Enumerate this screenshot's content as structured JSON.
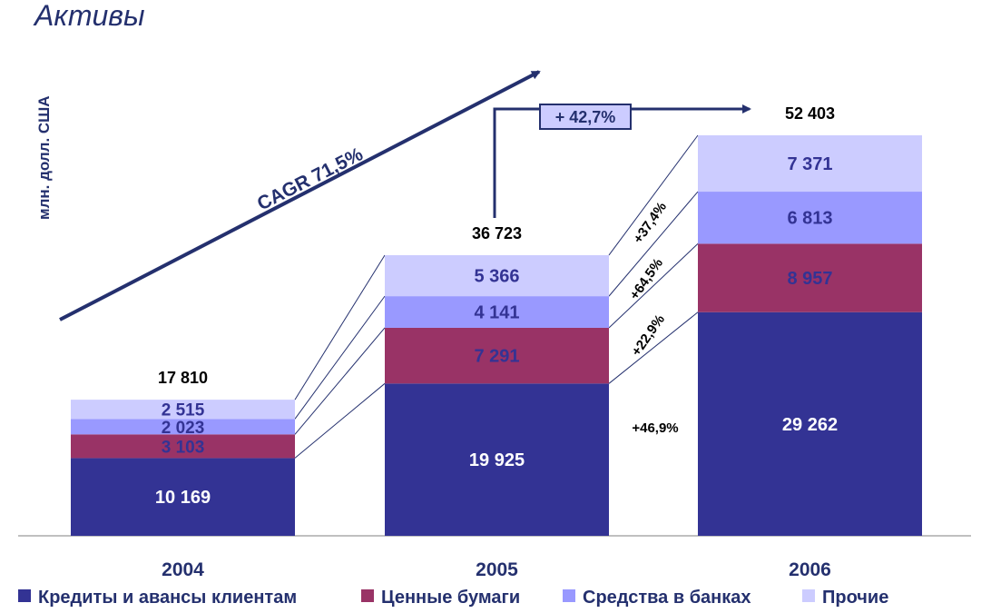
{
  "chart_data": {
    "type": "bar",
    "stacked": true,
    "title": "Активы",
    "ylabel": "млн. долл. США",
    "categories": [
      "2004",
      "2005",
      "2006"
    ],
    "series": [
      {
        "name": "Кредиты и авансы клиентам",
        "values": [
          10169,
          19925,
          29262
        ],
        "labels": [
          "10 169",
          "19 925",
          "29 262"
        ],
        "color": "#333394"
      },
      {
        "name": "Ценные бумаги",
        "values": [
          3103,
          7291,
          8957
        ],
        "labels": [
          "3 103",
          "7 291",
          "8 957"
        ],
        "color": "#993366"
      },
      {
        "name": "Средства в банках",
        "values": [
          2023,
          4141,
          6813
        ],
        "labels": [
          "2 023",
          "4 141",
          "6 813"
        ],
        "color": "#9999ff"
      },
      {
        "name": "Прочие",
        "values": [
          2515,
          5366,
          7371
        ],
        "labels": [
          "2 515",
          "5 366",
          "7 371"
        ],
        "color": "#ccccff"
      }
    ],
    "totals": [
      "17 810",
      "36 723",
      "52 403"
    ],
    "growth_2005_2006": [
      "+46,9%",
      "+22,9%",
      "+64,5%",
      "+37,4%"
    ],
    "cagr_label": "CAGR 71,5%",
    "total_growth_label": "+ 42,7%",
    "ylim": [
      0,
      52403
    ],
    "legend_position": "bottom",
    "grid": false
  }
}
